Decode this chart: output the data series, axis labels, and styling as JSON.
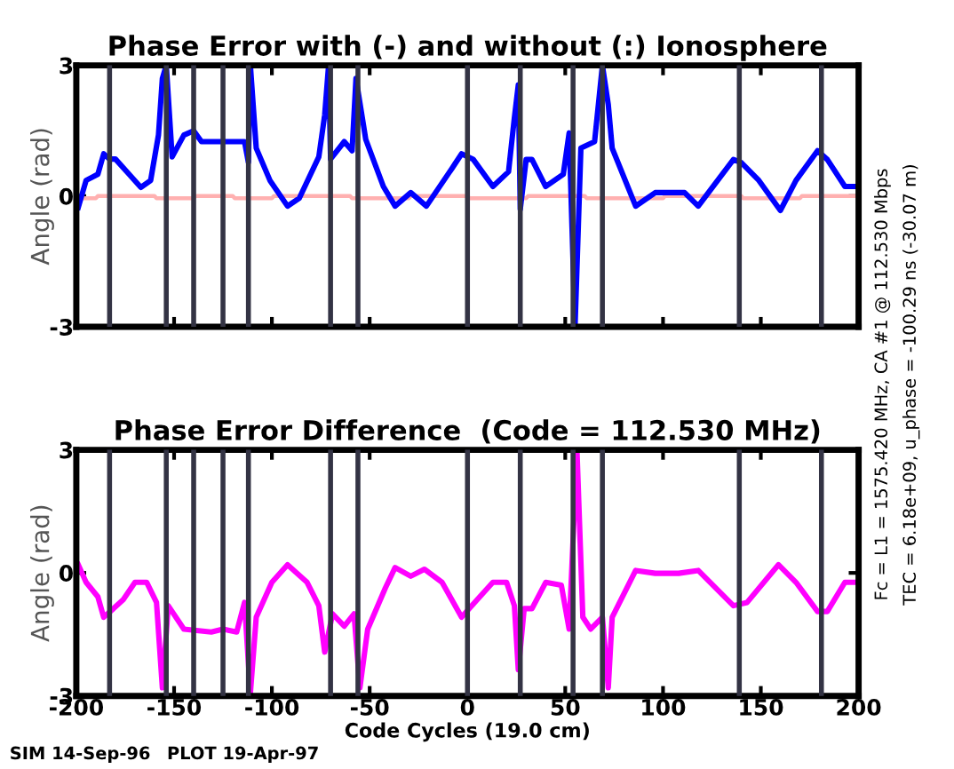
{
  "chart_data": [
    {
      "type": "line",
      "title": "Phase Error with (-) and without (:) Ionosphere",
      "ylabel": "Angle (rad)",
      "xlim": [
        -200,
        200
      ],
      "ylim": [
        -3,
        3
      ],
      "xticks": [
        -200,
        -150,
        -100,
        -50,
        0,
        50,
        100,
        150,
        200
      ],
      "yticks": [
        -3,
        0,
        3
      ],
      "tick_labels": "y",
      "grid": false,
      "series": [
        {
          "color": "#ffb0b0",
          "x": [
            -200,
            -190,
            -189,
            -160,
            -159,
            -140,
            -139,
            -120,
            -119,
            -100,
            -99,
            -60,
            -59,
            -30,
            -29,
            0,
            1,
            30,
            31,
            60,
            61,
            100,
            101,
            140,
            141,
            170,
            171,
            200
          ],
          "values": [
            -0.05,
            -0.05,
            0.0,
            0.0,
            -0.05,
            -0.05,
            0.0,
            0.0,
            -0.05,
            -0.05,
            0.0,
            0.0,
            -0.05,
            -0.05,
            0.0,
            0.0,
            -0.05,
            -0.05,
            0.0,
            0.0,
            -0.05,
            -0.05,
            0.0,
            0.0,
            -0.05,
            -0.05,
            0.0,
            0.0
          ]
        },
        {
          "color": "#0000ff",
          "x": [
            -199,
            -195,
            -189,
            -186,
            -183,
            -180,
            -173,
            -167,
            -162,
            -158,
            -156,
            -154,
            -151,
            -145,
            -140,
            -136,
            -114,
            -112,
            -111,
            -108,
            -101,
            -92,
            -86,
            -76,
            -73,
            -71,
            -70,
            -63,
            -59,
            -57,
            -52,
            -43,
            -37,
            -29,
            -21,
            -8,
            -3,
            3,
            13,
            21,
            24,
            26,
            27,
            30,
            33,
            40,
            49,
            52,
            55,
            58,
            65,
            69,
            72,
            74,
            86,
            96,
            111,
            118,
            136,
            140,
            149,
            160,
            168,
            179,
            184,
            193,
            200
          ],
          "values": [
            -0.26,
            0.36,
            0.5,
            0.97,
            0.85,
            0.85,
            0.5,
            0.2,
            0.36,
            1.4,
            2.7,
            3.0,
            0.9,
            1.4,
            1.5,
            1.25,
            1.25,
            0.77,
            3.0,
            1.1,
            0.36,
            -0.23,
            -0.05,
            0.9,
            1.86,
            3.0,
            0.85,
            1.25,
            1.04,
            2.7,
            1.3,
            0.22,
            -0.23,
            0.08,
            -0.23,
            0.63,
            0.97,
            0.84,
            0.22,
            0.56,
            1.8,
            2.55,
            -0.3,
            0.84,
            0.84,
            0.22,
            0.5,
            1.45,
            -3.0,
            1.1,
            1.25,
            3.0,
            2.1,
            1.1,
            -0.23,
            0.08,
            0.08,
            -0.23,
            0.84,
            0.77,
            0.36,
            -0.33,
            0.36,
            1.04,
            0.84,
            0.22,
            0.22
          ]
        }
      ],
      "ref_lines": [
        {
          "axis": "x",
          "value": -183,
          "color": "#333344"
        },
        {
          "axis": "x",
          "value": -154,
          "color": "#333344"
        },
        {
          "axis": "x",
          "value": -140,
          "color": "#333344"
        },
        {
          "axis": "x",
          "value": -125,
          "color": "#333344"
        },
        {
          "axis": "x",
          "value": -112,
          "color": "#333344"
        },
        {
          "axis": "x",
          "value": -70,
          "color": "#333344"
        },
        {
          "axis": "x",
          "value": -56,
          "color": "#333344"
        },
        {
          "axis": "x",
          "value": 0,
          "color": "#333344"
        },
        {
          "axis": "x",
          "value": 27,
          "color": "#333344"
        },
        {
          "axis": "x",
          "value": 54,
          "color": "#333344"
        },
        {
          "axis": "x",
          "value": 69,
          "color": "#333344"
        },
        {
          "axis": "x",
          "value": 139,
          "color": "#333344"
        },
        {
          "axis": "x",
          "value": 181,
          "color": "#333344"
        }
      ],
      "annotations": [
        "Fc = L1 = 1575.420 MHz, CA #1 @ 112.530 Mbps",
        "TEC = 6.18e+09, u_phase = -100.29 ns (-30.07 m)"
      ]
    },
    {
      "type": "line",
      "title": "Phase Error Difference  (Code = 112.530 MHz)",
      "ylabel": "Angle (rad)",
      "xlabel": "Code Cycles (19.0 cm)",
      "xlim": [
        -200,
        200
      ],
      "ylim": [
        -3,
        3
      ],
      "xticks": [
        -200,
        -150,
        -100,
        -50,
        0,
        50,
        100,
        150,
        200
      ],
      "yticks": [
        -3,
        0,
        3
      ],
      "grid": false,
      "series": [
        {
          "color": "#ff00ff",
          "x": [
            -199,
            -195,
            -189,
            -186,
            -181,
            -176,
            -170,
            -164,
            -159,
            -156,
            -153,
            -145,
            -131,
            -125,
            -118,
            -114,
            -111,
            -108,
            -100,
            -92,
            -82,
            -76,
            -73,
            -69,
            -63,
            -58,
            -55,
            -51,
            -42,
            -37,
            -29,
            -22,
            -13,
            -3,
            5,
            13,
            20,
            24,
            26,
            29,
            33,
            40,
            48,
            52,
            56,
            59,
            63,
            69,
            72,
            74,
            86,
            96,
            108,
            118,
            136,
            143,
            159,
            168,
            179,
            184,
            193,
            200
          ],
          "values": [
            0.2,
            -0.23,
            -0.58,
            -1.08,
            -0.87,
            -0.65,
            -0.23,
            -0.23,
            -0.72,
            -2.8,
            -0.8,
            -1.37,
            -1.44,
            -1.37,
            -1.44,
            -0.72,
            -2.93,
            -1.08,
            -0.23,
            0.2,
            -0.23,
            -0.8,
            -1.93,
            -1.0,
            -1.3,
            -1.0,
            -2.8,
            -1.37,
            -0.37,
            0.13,
            -0.08,
            0.09,
            -0.23,
            -1.08,
            -0.65,
            -0.23,
            -0.23,
            -0.8,
            -2.36,
            -0.87,
            -0.87,
            -0.23,
            -0.3,
            -1.37,
            2.97,
            -1.08,
            -1.37,
            -1.08,
            -2.8,
            -1.08,
            0.06,
            -0.01,
            -0.01,
            0.06,
            -0.8,
            -0.72,
            0.2,
            -0.23,
            -0.94,
            -0.94,
            -0.23,
            -0.23
          ]
        }
      ],
      "ref_lines": [
        {
          "axis": "x",
          "value": -183,
          "color": "#333344"
        },
        {
          "axis": "x",
          "value": -154,
          "color": "#333344"
        },
        {
          "axis": "x",
          "value": -140,
          "color": "#333344"
        },
        {
          "axis": "x",
          "value": -125,
          "color": "#333344"
        },
        {
          "axis": "x",
          "value": -112,
          "color": "#333344"
        },
        {
          "axis": "x",
          "value": -70,
          "color": "#333344"
        },
        {
          "axis": "x",
          "value": -56,
          "color": "#333344"
        },
        {
          "axis": "x",
          "value": 0,
          "color": "#333344"
        },
        {
          "axis": "x",
          "value": 27,
          "color": "#333344"
        },
        {
          "axis": "x",
          "value": 54,
          "color": "#333344"
        },
        {
          "axis": "x",
          "value": 69,
          "color": "#333344"
        },
        {
          "axis": "x",
          "value": 139,
          "color": "#333344"
        },
        {
          "axis": "x",
          "value": 181,
          "color": "#333344"
        }
      ],
      "annotations": [
        "SIM 14-Sep-96",
        "PLOT 19-Apr-97"
      ]
    }
  ]
}
